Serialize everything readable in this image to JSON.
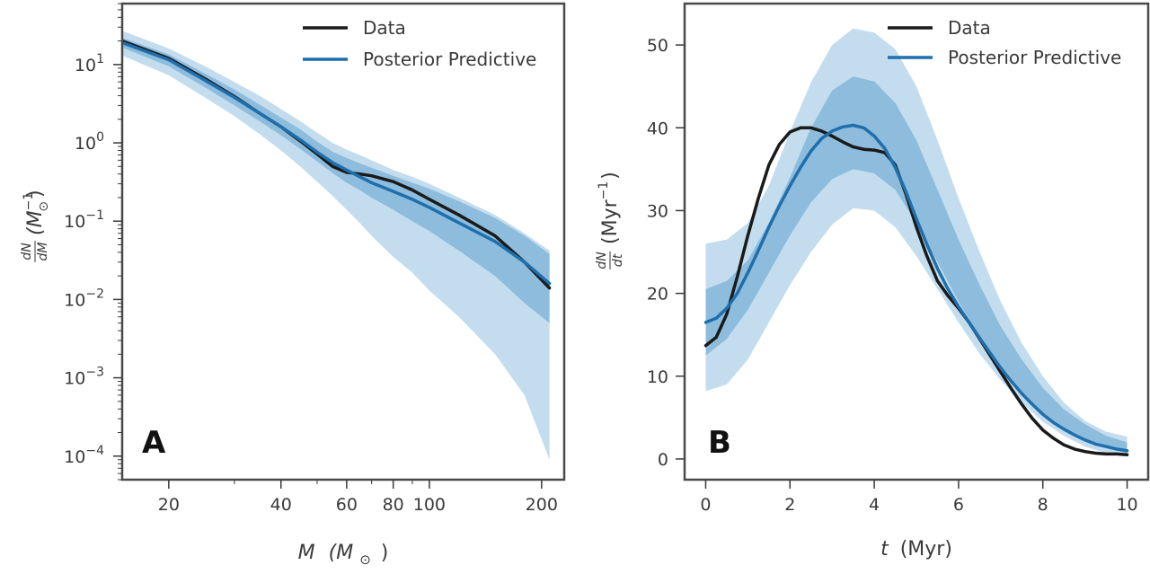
{
  "colors": {
    "data_line": "#1a1a1a",
    "posterior_line": "#1f6fad",
    "band_inner": "#8dbcdc",
    "band_outer": "#c3ddee",
    "frame": "#4a4a4a"
  },
  "chart_data": [
    {
      "type": "line",
      "panel_label": "A",
      "xscale": "log",
      "yscale": "log",
      "xlim": [
        15,
        230
      ],
      "ylim": [
        5e-05,
        60
      ],
      "xticks": [
        20,
        40,
        60,
        80,
        100,
        200
      ],
      "xtick_labels": [
        "20",
        "40",
        "60",
        "80",
        "100",
        "200"
      ],
      "yticks": [
        0.0001,
        0.001,
        0.01,
        0.1,
        1,
        10
      ],
      "ytick_labels": [
        {
          "base": "10",
          "exp": "−4"
        },
        {
          "base": "10",
          "exp": "−3"
        },
        {
          "base": "10",
          "exp": "−2"
        },
        {
          "base": "10",
          "exp": "−1"
        },
        {
          "base": "10",
          "exp": "0"
        },
        {
          "base": "10",
          "exp": "1"
        }
      ],
      "xlabel": {
        "var": "M",
        "paren": "(M",
        "sub": "⊙",
        "close": ")"
      },
      "ylabel": {
        "num": "dN",
        "den": "dM",
        "paren": "(M",
        "sup": "−1",
        "sub": "⊙",
        "close": ")"
      },
      "legend": {
        "position": "top-right",
        "entries": [
          "Data",
          "Posterior Predictive"
        ]
      },
      "series": [
        {
          "name": "Data",
          "color_key": "data_line",
          "x": [
            15,
            20,
            25,
            30,
            35,
            40,
            45,
            50,
            55,
            60,
            65,
            70,
            80,
            90,
            100,
            120,
            150,
            180,
            210
          ],
          "y": [
            20,
            12,
            6.6,
            3.9,
            2.4,
            1.6,
            1.06,
            0.72,
            0.5,
            0.42,
            0.4,
            0.38,
            0.32,
            0.25,
            0.19,
            0.12,
            0.065,
            0.03,
            0.014
          ]
        },
        {
          "name": "Posterior Predictive",
          "color_key": "posterior_line",
          "x": [
            15,
            20,
            25,
            30,
            35,
            40,
            45,
            50,
            55,
            60,
            65,
            70,
            80,
            90,
            100,
            120,
            150,
            180,
            210
          ],
          "y": [
            19,
            11.5,
            6.3,
            3.8,
            2.4,
            1.6,
            1.1,
            0.76,
            0.56,
            0.45,
            0.37,
            0.31,
            0.24,
            0.19,
            0.15,
            0.095,
            0.055,
            0.03,
            0.016
          ]
        }
      ],
      "bands": [
        {
          "level": "outer",
          "x": [
            15,
            20,
            25,
            30,
            35,
            40,
            45,
            50,
            55,
            60,
            65,
            70,
            80,
            90,
            100,
            120,
            150,
            180,
            210
          ],
          "lower": [
            13,
            7.3,
            3.8,
            2.2,
            1.3,
            0.8,
            0.5,
            0.32,
            0.21,
            0.14,
            0.095,
            0.065,
            0.035,
            0.022,
            0.013,
            0.006,
            0.002,
            0.0006,
            9e-05
          ],
          "upper": [
            27,
            16,
            9.5,
            6,
            4,
            2.7,
            1.9,
            1.35,
            1.0,
            0.82,
            0.7,
            0.6,
            0.45,
            0.37,
            0.3,
            0.2,
            0.12,
            0.07,
            0.042
          ]
        },
        {
          "level": "inner",
          "x": [
            15,
            20,
            25,
            30,
            35,
            40,
            45,
            50,
            55,
            60,
            65,
            70,
            80,
            90,
            100,
            120,
            150,
            180,
            210
          ],
          "lower": [
            16.5,
            9.5,
            5.1,
            3.0,
            1.9,
            1.25,
            0.84,
            0.58,
            0.41,
            0.31,
            0.25,
            0.2,
            0.14,
            0.1,
            0.075,
            0.042,
            0.02,
            0.009,
            0.005
          ],
          "upper": [
            22,
            13.5,
            7.7,
            4.8,
            3.1,
            2.1,
            1.5,
            1.03,
            0.77,
            0.64,
            0.55,
            0.48,
            0.38,
            0.31,
            0.26,
            0.18,
            0.11,
            0.065,
            0.038
          ]
        }
      ]
    },
    {
      "type": "line",
      "panel_label": "B",
      "xscale": "linear",
      "yscale": "linear",
      "xlim": [
        -0.5,
        10.5
      ],
      "ylim": [
        -2.5,
        55
      ],
      "xticks": [
        0,
        2,
        4,
        6,
        8,
        10
      ],
      "xtick_labels": [
        "0",
        "2",
        "4",
        "6",
        "8",
        "10"
      ],
      "yticks": [
        0,
        10,
        20,
        30,
        40,
        50
      ],
      "ytick_labels": [
        "0",
        "10",
        "20",
        "30",
        "40",
        "50"
      ],
      "xlabel": {
        "var": "t",
        "unit": "(Myr)"
      },
      "ylabel": {
        "num": "dN",
        "den": "dt",
        "paren": "(Myr",
        "sup": "−1",
        "close": ")"
      },
      "legend": {
        "position": "top-right",
        "entries": [
          "Data",
          "Posterior Predictive"
        ]
      },
      "series": [
        {
          "name": "Data",
          "color_key": "data_line",
          "x": [
            0,
            0.25,
            0.5,
            0.75,
            1,
            1.25,
            1.5,
            1.75,
            2,
            2.25,
            2.5,
            2.75,
            3,
            3.25,
            3.5,
            3.75,
            4,
            4.25,
            4.5,
            4.75,
            5,
            5.25,
            5.5,
            5.75,
            6,
            6.25,
            6.5,
            6.75,
            7,
            7.25,
            7.5,
            7.75,
            8,
            8.25,
            8.5,
            8.75,
            9,
            9.25,
            9.5,
            9.75,
            10
          ],
          "y": [
            13.7,
            14.7,
            17.5,
            22,
            27,
            31.5,
            35.5,
            38,
            39.5,
            40,
            40,
            39.6,
            39,
            38.3,
            37.7,
            37.4,
            37.3,
            37,
            35.5,
            32,
            28,
            24.5,
            21.5,
            19.7,
            18.2,
            16.5,
            14.5,
            12.5,
            10.5,
            8.5,
            6.6,
            4.9,
            3.5,
            2.5,
            1.7,
            1.2,
            0.9,
            0.7,
            0.6,
            0.6,
            0.5
          ]
        },
        {
          "name": "Posterior Predictive",
          "color_key": "posterior_line",
          "x": [
            0,
            0.25,
            0.5,
            0.75,
            1,
            1.25,
            1.5,
            1.75,
            2,
            2.25,
            2.5,
            2.75,
            3,
            3.25,
            3.5,
            3.75,
            4,
            4.25,
            4.5,
            4.75,
            5,
            5.25,
            5.5,
            5.75,
            6,
            6.25,
            6.5,
            6.75,
            7,
            7.25,
            7.5,
            7.75,
            8,
            8.25,
            8.5,
            8.75,
            9,
            9.25,
            9.5,
            9.75,
            10
          ],
          "y": [
            16.5,
            17,
            18.2,
            20,
            22.5,
            25.2,
            28,
            30.6,
            33,
            35.2,
            37.2,
            38.7,
            39.6,
            40.1,
            40.3,
            40,
            39,
            37.5,
            35.2,
            32.3,
            29,
            25.9,
            23,
            20.5,
            18.4,
            16.5,
            14.6,
            12.8,
            11,
            9.4,
            7.9,
            6.6,
            5.4,
            4.4,
            3.6,
            2.9,
            2.3,
            1.8,
            1.5,
            1.2,
            1.0
          ]
        }
      ],
      "bands": [
        {
          "level": "outer",
          "x": [
            0,
            0.5,
            1,
            1.5,
            2,
            2.5,
            3,
            3.5,
            4,
            4.5,
            5,
            5.5,
            6,
            6.5,
            7,
            7.5,
            8,
            8.5,
            9,
            9.5,
            10
          ],
          "lower": [
            8.2,
            9,
            12,
            16.5,
            21,
            25,
            28.3,
            30.3,
            30,
            28,
            24.5,
            20.5,
            16.5,
            12.7,
            9.5,
            6.8,
            4.5,
            2.8,
            1.5,
            0.7,
            0.3
          ],
          "upper": [
            26,
            26.5,
            28.5,
            33,
            39.5,
            45.5,
            50,
            52,
            51.5,
            49.5,
            45,
            38.5,
            31.5,
            25,
            19,
            14,
            10,
            6.8,
            4.6,
            3.3,
            2.7
          ]
        },
        {
          "level": "inner",
          "x": [
            0,
            0.5,
            1,
            1.5,
            2,
            2.5,
            3,
            3.5,
            4,
            4.5,
            5,
            5.5,
            6,
            6.5,
            7,
            7.5,
            8,
            8.5,
            9,
            9.5,
            10
          ],
          "lower": [
            12.5,
            14.5,
            18,
            22.5,
            27,
            31,
            33.8,
            35,
            34.5,
            32.5,
            28.5,
            23.8,
            19,
            14.7,
            11,
            8,
            5.5,
            3.6,
            2.2,
            1.3,
            0.7
          ],
          "upper": [
            20.5,
            21.5,
            24,
            28.5,
            34,
            40,
            44.5,
            46.2,
            45.6,
            43,
            38.5,
            32.5,
            26.5,
            21,
            16,
            12,
            8.6,
            6,
            4.2,
            2.8,
            2
          ]
        }
      ]
    }
  ]
}
